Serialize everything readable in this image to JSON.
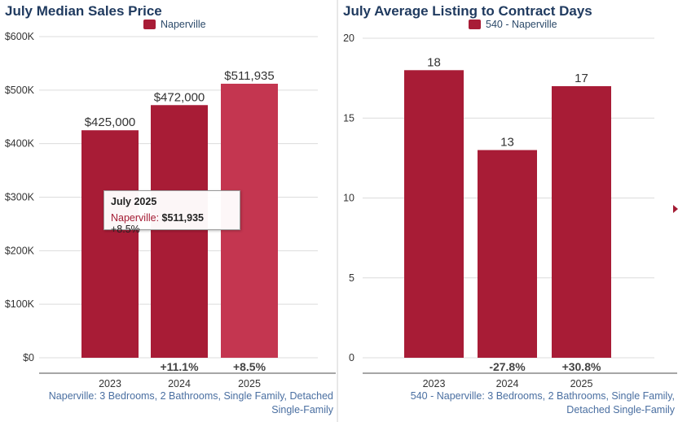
{
  "chart_data": [
    {
      "type": "bar",
      "title": "July Median Sales Price",
      "legend": "Naperville",
      "color": "#a81c36",
      "highlight_color": "#c43650",
      "categories": [
        "2023",
        "2024",
        "2025"
      ],
      "values": [
        425000,
        472000,
        511935
      ],
      "value_labels": [
        "$425,000",
        "$472,000",
        "$511,935"
      ],
      "change_labels": [
        "",
        "+11.1%",
        "+8.5%"
      ],
      "ylim": [
        0,
        600000
      ],
      "yticks": [
        0,
        100000,
        200000,
        300000,
        400000,
        500000,
        600000
      ],
      "ytick_labels": [
        "$0",
        "$100K",
        "$200K",
        "$300K",
        "$400K",
        "$500K",
        "$600K"
      ],
      "highlighted_index": 2,
      "footer": [
        "Naperville: 3 Bedrooms, 2 Bathrooms, Single Family, Detached",
        "Single-Family"
      ],
      "tooltip": {
        "title": "July 2025",
        "series": "Naperville:",
        "value": "$511,935",
        "change": "+8.5%"
      }
    },
    {
      "type": "bar",
      "title": "July Average Listing to Contract Days",
      "legend": "540 - Naperville",
      "color": "#a81c36",
      "categories": [
        "2023",
        "2024",
        "2025"
      ],
      "values": [
        18,
        13,
        17
      ],
      "value_labels": [
        "18",
        "13",
        "17"
      ],
      "change_labels": [
        "",
        "-27.8%",
        "+30.8%"
      ],
      "ylim": [
        0,
        20
      ],
      "yticks": [
        0,
        5,
        10,
        15,
        20
      ],
      "ytick_labels": [
        "0",
        "5",
        "10",
        "15",
        "20"
      ],
      "footer": [
        "540 - Naperville: 3 Bedrooms, 2 Bathrooms, Single Family,",
        "Detached Single-Family"
      ]
    }
  ]
}
